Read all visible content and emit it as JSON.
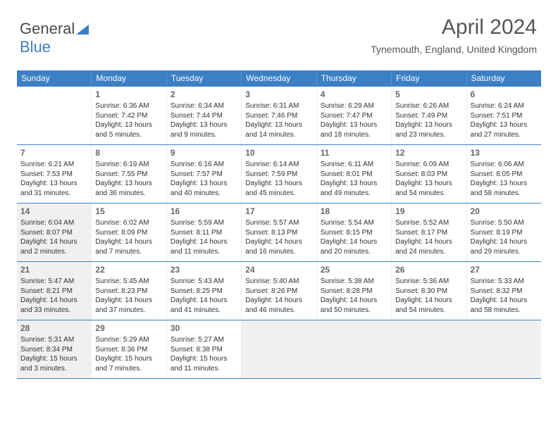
{
  "logo": {
    "text1": "General",
    "text2": "Blue"
  },
  "header": {
    "title": "April 2024",
    "location": "Tynemouth, England, United Kingdom"
  },
  "colors": {
    "header_bg": "#3b7fc4",
    "header_text": "#ffffff",
    "border": "#3b7fc4",
    "shaded": "#f0f0f0",
    "body_text": "#333333",
    "title_text": "#555555"
  },
  "typography": {
    "title_fontsize": 30,
    "subtitle_fontsize": 14,
    "dow_fontsize": 12,
    "daynum_fontsize": 12,
    "cell_fontsize": 10
  },
  "days_of_week": [
    "Sunday",
    "Monday",
    "Tuesday",
    "Wednesday",
    "Thursday",
    "Friday",
    "Saturday"
  ],
  "weeks": [
    [
      {
        "empty": true
      },
      {
        "day": 1,
        "sunrise": "6:36 AM",
        "sunset": "7:42 PM",
        "daylight": "13 hours and 5 minutes."
      },
      {
        "day": 2,
        "sunrise": "6:34 AM",
        "sunset": "7:44 PM",
        "daylight": "13 hours and 9 minutes."
      },
      {
        "day": 3,
        "sunrise": "6:31 AM",
        "sunset": "7:46 PM",
        "daylight": "13 hours and 14 minutes."
      },
      {
        "day": 4,
        "sunrise": "6:29 AM",
        "sunset": "7:47 PM",
        "daylight": "13 hours and 18 minutes."
      },
      {
        "day": 5,
        "sunrise": "6:26 AM",
        "sunset": "7:49 PM",
        "daylight": "13 hours and 23 minutes."
      },
      {
        "day": 6,
        "sunrise": "6:24 AM",
        "sunset": "7:51 PM",
        "daylight": "13 hours and 27 minutes."
      }
    ],
    [
      {
        "day": 7,
        "sunrise": "6:21 AM",
        "sunset": "7:53 PM",
        "daylight": "13 hours and 31 minutes."
      },
      {
        "day": 8,
        "sunrise": "6:19 AM",
        "sunset": "7:55 PM",
        "daylight": "13 hours and 36 minutes."
      },
      {
        "day": 9,
        "sunrise": "6:16 AM",
        "sunset": "7:57 PM",
        "daylight": "13 hours and 40 minutes."
      },
      {
        "day": 10,
        "sunrise": "6:14 AM",
        "sunset": "7:59 PM",
        "daylight": "13 hours and 45 minutes."
      },
      {
        "day": 11,
        "sunrise": "6:11 AM",
        "sunset": "8:01 PM",
        "daylight": "13 hours and 49 minutes."
      },
      {
        "day": 12,
        "sunrise": "6:09 AM",
        "sunset": "8:03 PM",
        "daylight": "13 hours and 54 minutes."
      },
      {
        "day": 13,
        "sunrise": "6:06 AM",
        "sunset": "8:05 PM",
        "daylight": "13 hours and 58 minutes."
      }
    ],
    [
      {
        "day": 14,
        "shaded": true,
        "sunrise": "6:04 AM",
        "sunset": "8:07 PM",
        "daylight": "14 hours and 2 minutes."
      },
      {
        "day": 15,
        "sunrise": "6:02 AM",
        "sunset": "8:09 PM",
        "daylight": "14 hours and 7 minutes."
      },
      {
        "day": 16,
        "sunrise": "5:59 AM",
        "sunset": "8:11 PM",
        "daylight": "14 hours and 11 minutes."
      },
      {
        "day": 17,
        "sunrise": "5:57 AM",
        "sunset": "8:13 PM",
        "daylight": "14 hours and 16 minutes."
      },
      {
        "day": 18,
        "sunrise": "5:54 AM",
        "sunset": "8:15 PM",
        "daylight": "14 hours and 20 minutes."
      },
      {
        "day": 19,
        "sunrise": "5:52 AM",
        "sunset": "8:17 PM",
        "daylight": "14 hours and 24 minutes."
      },
      {
        "day": 20,
        "sunrise": "5:50 AM",
        "sunset": "8:19 PM",
        "daylight": "14 hours and 29 minutes."
      }
    ],
    [
      {
        "day": 21,
        "shaded": true,
        "sunrise": "5:47 AM",
        "sunset": "8:21 PM",
        "daylight": "14 hours and 33 minutes."
      },
      {
        "day": 22,
        "sunrise": "5:45 AM",
        "sunset": "8:23 PM",
        "daylight": "14 hours and 37 minutes."
      },
      {
        "day": 23,
        "sunrise": "5:43 AM",
        "sunset": "8:25 PM",
        "daylight": "14 hours and 41 minutes."
      },
      {
        "day": 24,
        "sunrise": "5:40 AM",
        "sunset": "8:26 PM",
        "daylight": "14 hours and 46 minutes."
      },
      {
        "day": 25,
        "sunrise": "5:38 AM",
        "sunset": "8:28 PM",
        "daylight": "14 hours and 50 minutes."
      },
      {
        "day": 26,
        "sunrise": "5:36 AM",
        "sunset": "8:30 PM",
        "daylight": "14 hours and 54 minutes."
      },
      {
        "day": 27,
        "sunrise": "5:33 AM",
        "sunset": "8:32 PM",
        "daylight": "14 hours and 58 minutes."
      }
    ],
    [
      {
        "day": 28,
        "shaded": true,
        "sunrise": "5:31 AM",
        "sunset": "8:34 PM",
        "daylight": "15 hours and 3 minutes."
      },
      {
        "day": 29,
        "sunrise": "5:29 AM",
        "sunset": "8:36 PM",
        "daylight": "15 hours and 7 minutes."
      },
      {
        "day": 30,
        "sunrise": "5:27 AM",
        "sunset": "8:38 PM",
        "daylight": "15 hours and 11 minutes."
      },
      {
        "empty": true,
        "shaded": true
      },
      {
        "empty": true,
        "shaded": true
      },
      {
        "empty": true,
        "shaded": true
      },
      {
        "empty": true,
        "shaded": true
      }
    ]
  ],
  "labels": {
    "sunrise": "Sunrise: ",
    "sunset": "Sunset: ",
    "daylight": "Daylight: "
  }
}
